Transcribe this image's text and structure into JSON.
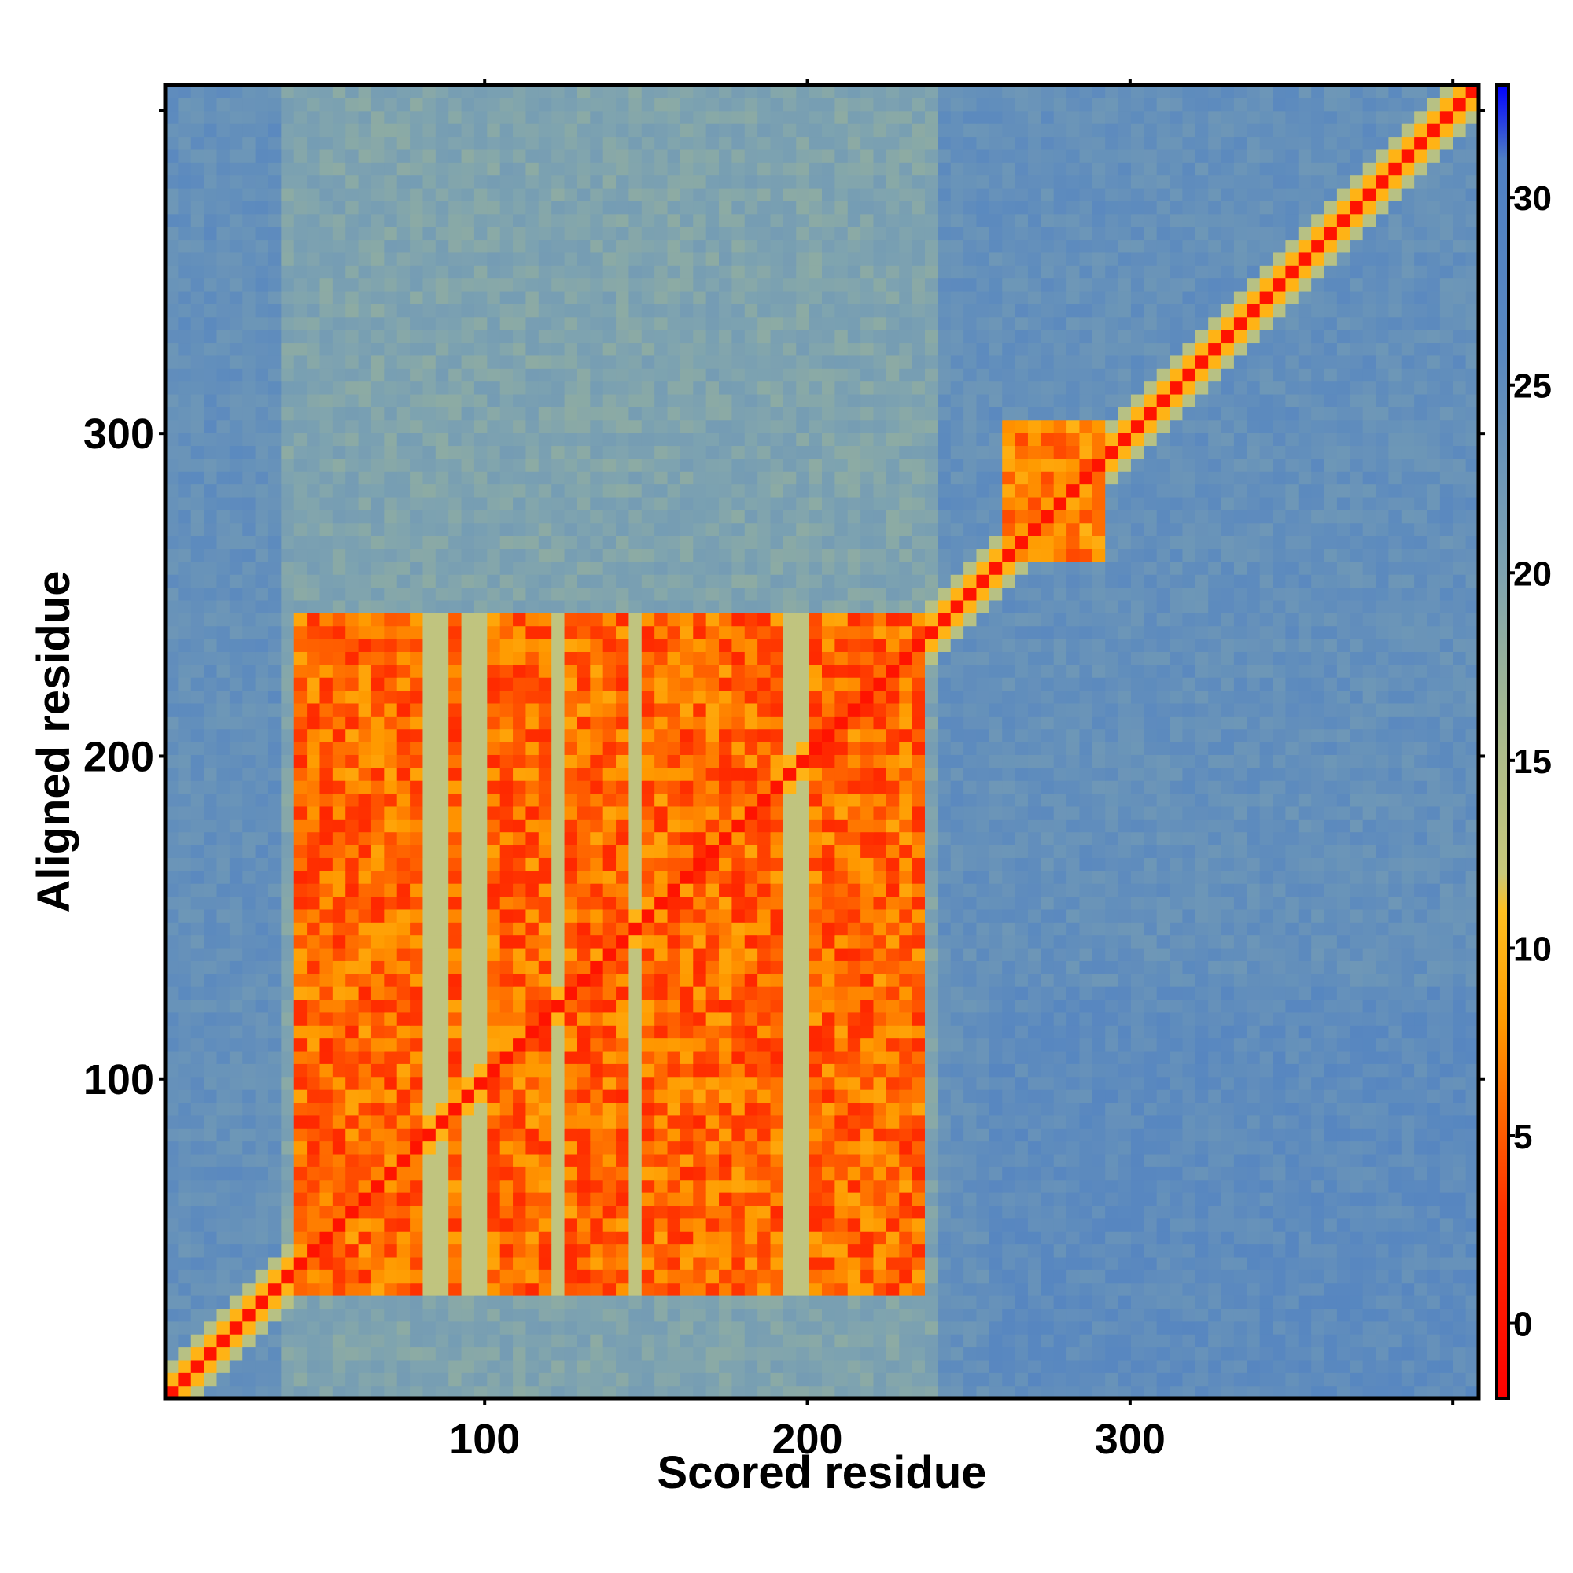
{
  "chart_data": {
    "type": "heatmap",
    "title": "",
    "xlabel": "Scored residue",
    "ylabel": "Aligned residue",
    "xlim": [
      1,
      408
    ],
    "ylim": [
      1,
      408
    ],
    "x_ticks": [
      100,
      200,
      300
    ],
    "y_ticks": [
      100,
      200,
      300
    ],
    "colorbar": {
      "range": [
        -2,
        33
      ],
      "ticks": [
        0,
        5,
        10,
        15,
        20,
        25,
        30
      ],
      "stops": [
        {
          "value": -2,
          "color": "#ff0000"
        },
        {
          "value": 3,
          "color": "#ff3000"
        },
        {
          "value": 8,
          "color": "#ff9a00"
        },
        {
          "value": 11,
          "color": "#ffc020"
        },
        {
          "value": 12,
          "color": "#c8c87a"
        },
        {
          "value": 16,
          "color": "#a6b98e"
        },
        {
          "value": 20,
          "color": "#7ea3b0"
        },
        {
          "value": 26,
          "color": "#5887c0"
        },
        {
          "value": 31,
          "color": "#4f80c4"
        },
        {
          "value": 33,
          "color": "#0000ff"
        }
      ]
    },
    "background_value": 24,
    "features": {
      "diagonal_value": 0,
      "domain_block": {
        "x_range": [
          40,
          238
        ],
        "y_range": [
          34,
          246
        ],
        "value": 2
      },
      "block_gap_columns": [
        85,
        97,
        123,
        148,
        197
      ],
      "secondary_block": {
        "x_range": [
          262,
          292
        ],
        "y_range": [
          262,
          306
        ],
        "value": 4
      },
      "grid_lines": true,
      "legend_position": "right"
    }
  }
}
